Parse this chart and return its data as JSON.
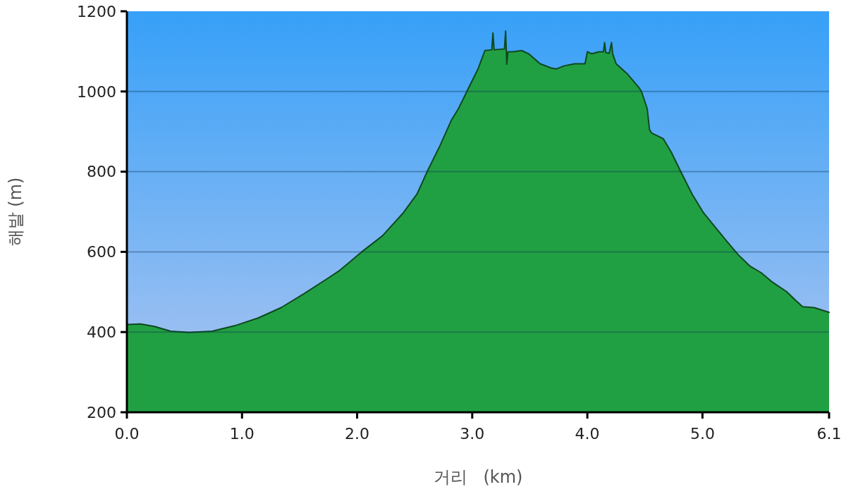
{
  "chart_data": {
    "type": "area",
    "xlabel": "거리   (km)",
    "ylabel": "해발 (m)",
    "xlim": [
      0,
      6.1
    ],
    "ylim": [
      200,
      1200
    ],
    "xticks": [
      {
        "value": 0,
        "label": "0.0"
      },
      {
        "value": 1,
        "label": "1.0"
      },
      {
        "value": 2,
        "label": "2.0"
      },
      {
        "value": 3,
        "label": "3.0"
      },
      {
        "value": 4,
        "label": "4.0"
      },
      {
        "value": 5,
        "label": "5.0"
      },
      6.1
    ],
    "yticks": [
      200,
      400,
      600,
      800,
      1000,
      1200
    ],
    "grid": "y",
    "color": "#21a043",
    "x": [
      0.0,
      0.12,
      0.24,
      0.38,
      0.54,
      0.74,
      0.94,
      1.14,
      1.34,
      1.54,
      1.74,
      1.85,
      1.92,
      2.04,
      2.22,
      2.4,
      2.52,
      2.61,
      2.72,
      2.82,
      2.88,
      2.93,
      2.96,
      3.05,
      3.11,
      3.17,
      3.18,
      3.19,
      3.28,
      3.29,
      3.3,
      3.31,
      3.35,
      3.43,
      3.49,
      3.59,
      3.68,
      3.73,
      3.8,
      3.89,
      3.98,
      4.0,
      4.04,
      4.1,
      4.14,
      4.15,
      4.16,
      4.19,
      4.21,
      4.22,
      4.25,
      4.35,
      4.45,
      4.47,
      4.52,
      4.54,
      4.56,
      4.66,
      4.73,
      4.81,
      4.91,
      5.01,
      5.11,
      5.21,
      5.31,
      5.41,
      5.51,
      5.61,
      5.73,
      5.81,
      5.87,
      5.97,
      6.1
    ],
    "values": [
      419,
      420,
      414,
      402,
      399,
      402,
      416,
      435,
      461,
      496,
      533,
      554,
      571,
      600,
      640,
      697,
      744,
      801,
      865,
      929,
      957,
      986,
      1004,
      1056,
      1102,
      1104,
      1146,
      1104,
      1106,
      1151,
      1068,
      1099,
      1099,
      1102,
      1094,
      1069,
      1059,
      1056,
      1064,
      1069,
      1069,
      1099,
      1094,
      1099,
      1099,
      1122,
      1097,
      1095,
      1122,
      1094,
      1069,
      1043,
      1009,
      1000,
      957,
      905,
      896,
      882,
      848,
      801,
      744,
      697,
      662,
      627,
      593,
      565,
      548,
      524,
      501,
      479,
      463,
      461,
      449
    ]
  }
}
